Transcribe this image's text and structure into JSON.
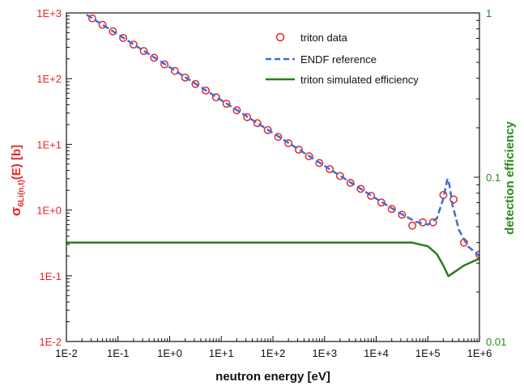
{
  "chart_data": {
    "type": "scatter",
    "title": "",
    "xlabel": "neutron energy [eV]",
    "ylabel_left": {
      "sigma": "σ",
      "subscript": "6Li(n,t)",
      "suffix": "(E) [b]"
    },
    "ylabel_right": "detection efficiency",
    "x_scale": "log",
    "y_scale": "log",
    "xlim": [
      0.01,
      1000000
    ],
    "ylim_left": [
      0.01,
      1000
    ],
    "ylim_right": [
      0.01,
      1
    ],
    "x_ticks": [
      "1E-2",
      "1E-1",
      "1E+0",
      "1E+1",
      "1E+2",
      "1E+3",
      "1E+4",
      "1E+5",
      "1E+6"
    ],
    "y_ticks_left": [
      "1E-2",
      "1E-1",
      "1E+0",
      "1E+1",
      "1E+2",
      "1E+3"
    ],
    "y_ticks_right": [
      "0.01",
      "0.1",
      "1"
    ],
    "colors": {
      "left_axis": "#e8262a",
      "right_axis": "#2a8a1f",
      "triton": "#e8262a",
      "endf": "#3b6fd6",
      "efficiency": "#2a7d1c"
    },
    "legend_position": "top-right",
    "series": [
      {
        "name": "triton data",
        "style": "open-circle",
        "axis": "left",
        "x": [
          0.0316,
          0.05,
          0.0794,
          0.126,
          0.2,
          0.316,
          0.5,
          0.794,
          1.26,
          2.0,
          3.16,
          5.0,
          7.94,
          12.6,
          20,
          31.6,
          50,
          79.4,
          126,
          200,
          316,
          501,
          794,
          1260,
          2000,
          3160,
          5010,
          7940,
          12600,
          20000,
          31600,
          50100,
          79400,
          126000,
          200000,
          316000,
          501000,
          1000000
        ],
        "y": [
          828,
          660,
          525,
          416,
          330,
          263,
          208,
          165,
          131,
          104,
          83,
          66,
          52,
          41.5,
          33,
          26,
          21,
          16.5,
          13,
          10.4,
          8.3,
          6.6,
          5.2,
          4.2,
          3.3,
          2.6,
          2.1,
          1.65,
          1.3,
          1.04,
          0.85,
          0.58,
          0.65,
          0.65,
          1.7,
          1.45,
          0.32,
          0.21
        ]
      },
      {
        "name": "ENDF reference",
        "style": "dashed",
        "axis": "left",
        "x": [
          0.0245,
          0.1,
          1,
          10,
          100,
          1000,
          10000,
          30000,
          60000,
          100000,
          150000,
          200000,
          240000,
          260000,
          300000,
          400000,
          600000,
          1000000
        ],
        "y": [
          940,
          470,
          149,
          47,
          14.9,
          4.7,
          1.49,
          0.88,
          0.66,
          0.6,
          0.75,
          1.5,
          3.0,
          2.5,
          1.2,
          0.5,
          0.28,
          0.2
        ]
      },
      {
        "name": "triton simulated efficiency",
        "style": "solid",
        "axis": "right",
        "x": [
          0.01,
          100,
          10000,
          50000,
          100000,
          150000,
          200000,
          250000,
          300000,
          500000,
          1000000
        ],
        "y": [
          0.04,
          0.04,
          0.04,
          0.04,
          0.038,
          0.034,
          0.029,
          0.025,
          0.026,
          0.029,
          0.032
        ]
      }
    ]
  }
}
